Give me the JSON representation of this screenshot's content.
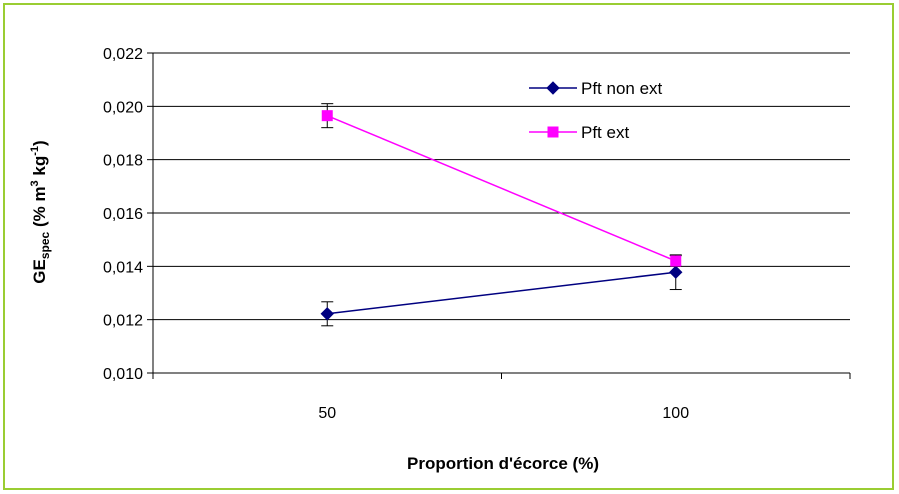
{
  "chart_data": {
    "type": "line",
    "title": "",
    "xlabel": "Proportion d'écorce (%)",
    "ylabel": {
      "main": "GE",
      "sub": "spec",
      "rest1": " (% m",
      "sup1": "3",
      "rest2": " kg",
      "sup2": "-1",
      "rest3": ")"
    },
    "categories": [
      "50",
      "100"
    ],
    "ylim": [
      0.01,
      0.022
    ],
    "yticks": [
      "0,010",
      "0,012",
      "0,014",
      "0,016",
      "0,018",
      "0,020",
      "0,022"
    ],
    "yticks_values": [
      0.01,
      0.012,
      0.014,
      0.016,
      0.018,
      0.02,
      0.022
    ],
    "grid": true,
    "legend_position": "top-right",
    "series": [
      {
        "name": "Pft non ext",
        "values": [
          0.01222,
          0.01378
        ],
        "error": [
          0.00045,
          0.00065
        ],
        "color": "#000080",
        "marker": "diamond"
      },
      {
        "name": "Pft ext",
        "values": [
          0.01965,
          0.0142
        ],
        "error": [
          0.00045,
          0.0002
        ],
        "color": "#FF00FF",
        "marker": "square"
      }
    ]
  },
  "colors": {
    "frame": "#9ACD32",
    "grid": "#000000"
  }
}
